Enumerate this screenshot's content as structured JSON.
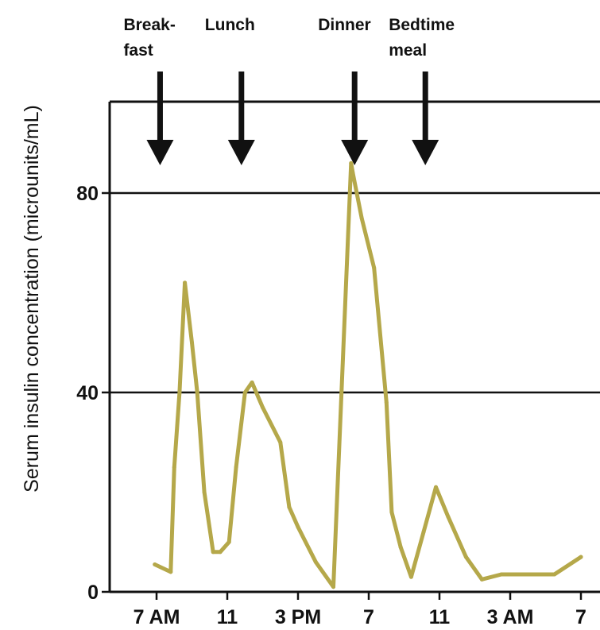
{
  "chart_data": {
    "type": "line",
    "title": "",
    "xlabel": "",
    "ylabel": "Serum insulin concentration (microunits/mL)",
    "ylim": [
      0,
      100
    ],
    "xlim": [
      6,
      31
    ],
    "grid": "horizontal lines at 40 and 80",
    "y_ticks": [
      {
        "value": 0,
        "label": "0"
      },
      {
        "value": 40,
        "label": "40"
      },
      {
        "value": 80,
        "label": "80"
      }
    ],
    "x_ticks": [
      {
        "value": 7,
        "label": "7 AM"
      },
      {
        "value": 11,
        "label": "11"
      },
      {
        "value": 15,
        "label": "3 PM"
      },
      {
        "value": 19,
        "label": "7"
      },
      {
        "value": 23,
        "label": "11"
      },
      {
        "value": 27,
        "label": "3 AM"
      },
      {
        "value": 31,
        "label": "7"
      }
    ],
    "meals": [
      {
        "lines": [
          "Break-",
          "fast"
        ],
        "x": 7.2
      },
      {
        "lines": [
          "Lunch"
        ],
        "x": 11.8
      },
      {
        "lines": [
          "Dinner"
        ],
        "x": 18.2
      },
      {
        "lines": [
          "Bedtime",
          "meal"
        ],
        "x": 22.2
      }
    ],
    "series": [
      {
        "color": "#b5a84a",
        "x": [
          6.9,
          7.8,
          8.0,
          8.3,
          8.6,
          9.0,
          9.3,
          9.7,
          10.2,
          10.6,
          11.1,
          11.5,
          12.0,
          12.4,
          13.0,
          14.0,
          14.5,
          15.0,
          16.0,
          17.0,
          18.0,
          18.1,
          18.6,
          19.3,
          20.0,
          20.3,
          20.8,
          21.4,
          22.1,
          22.8,
          23.5,
          24.5,
          25.4,
          26.5,
          27.3,
          28.2,
          29.5,
          31.0
        ],
        "y": [
          5.5,
          4,
          25,
          40,
          62,
          50,
          40,
          20,
          8,
          8,
          10,
          25,
          40,
          42,
          37,
          30,
          17,
          13,
          6,
          1,
          86,
          84,
          75,
          65,
          38,
          16,
          9,
          3,
          12,
          21,
          15,
          7,
          2.5,
          3.5,
          3.5,
          3.5,
          3.5,
          7
        ]
      }
    ]
  }
}
